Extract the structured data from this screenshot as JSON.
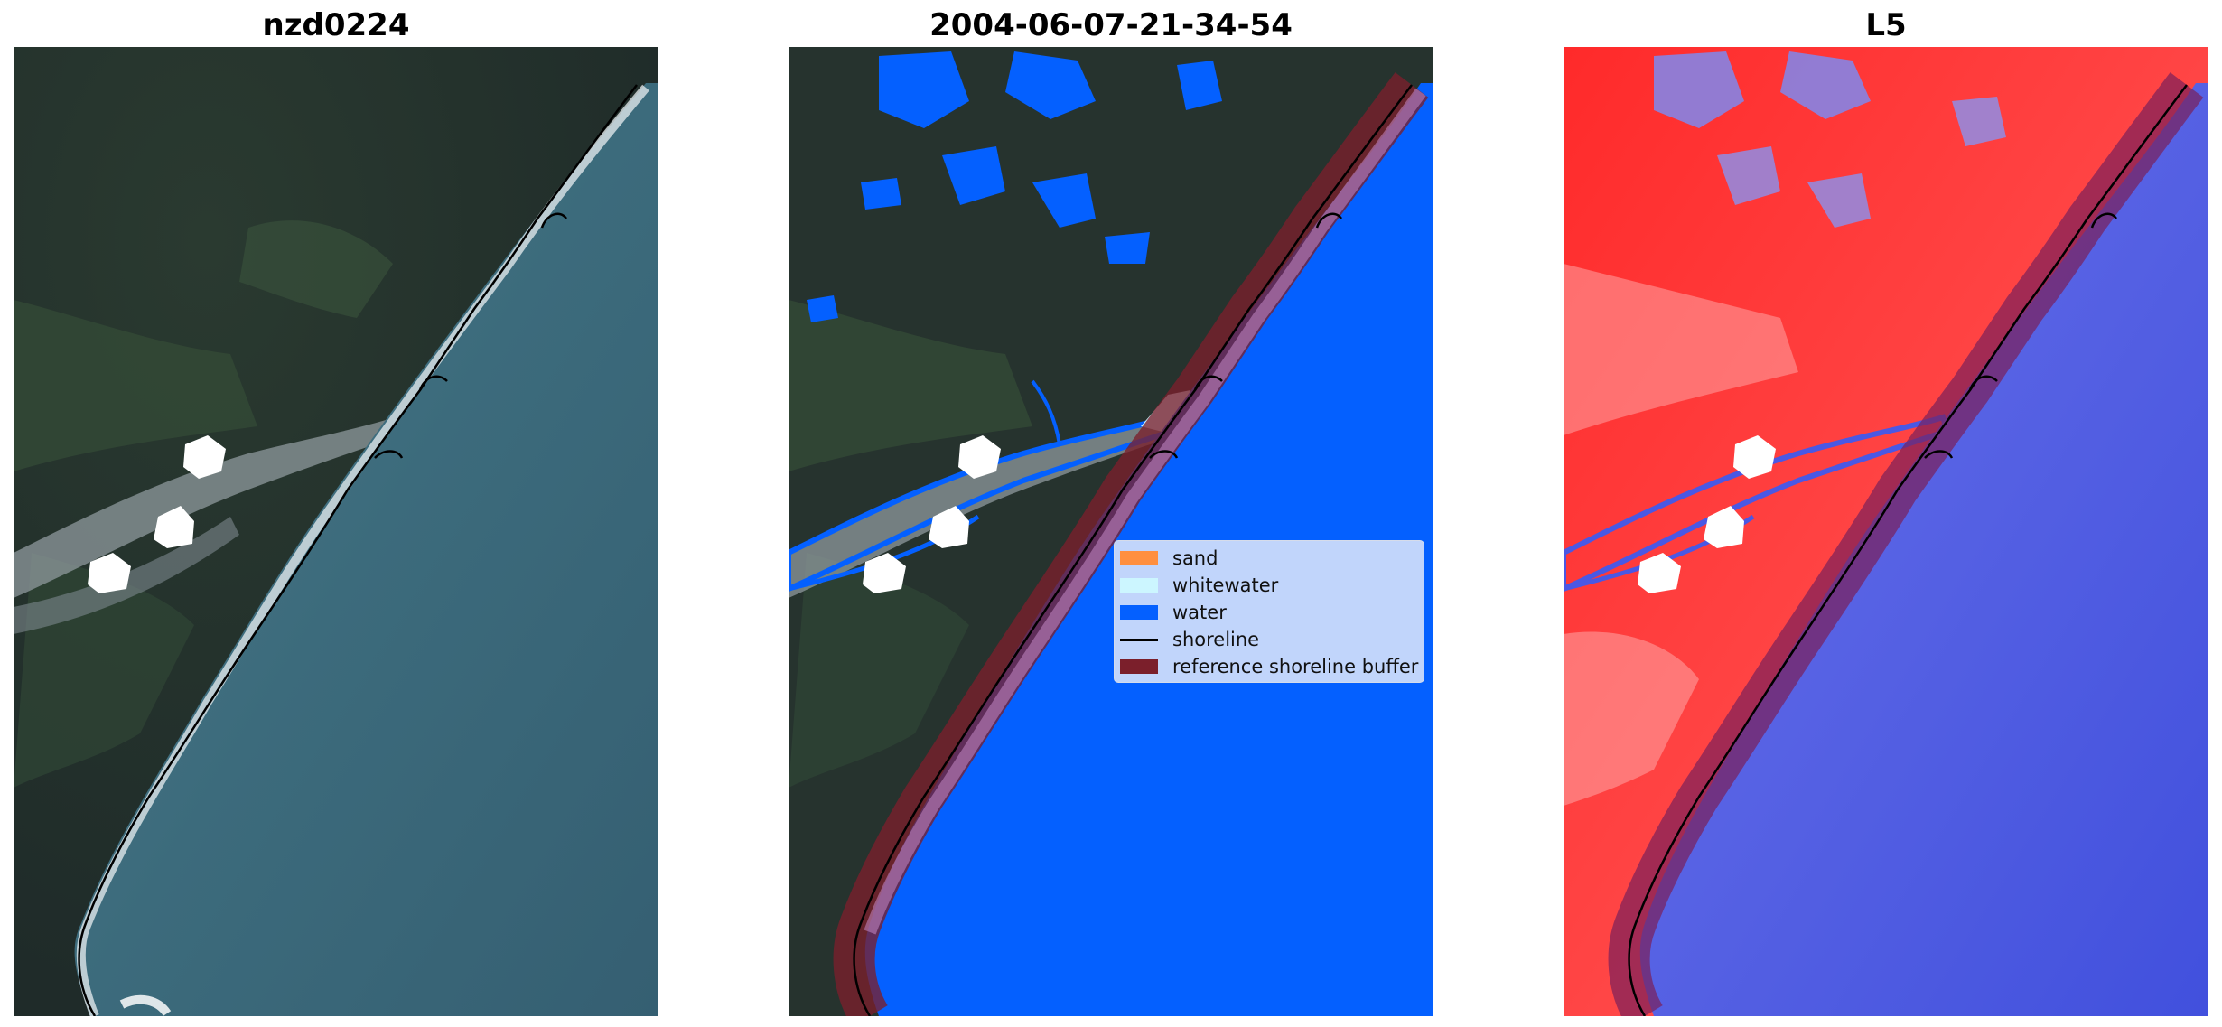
{
  "panels": [
    {
      "title": "nzd0224"
    },
    {
      "title": "2004-06-07-21-34-54"
    },
    {
      "title": "L5"
    }
  ],
  "legend": {
    "items": [
      {
        "label": "sand",
        "color": "#ff8f3f"
      },
      {
        "label": "whitewater",
        "color": "#ccf6ff"
      },
      {
        "label": "water",
        "color": "#0460ff"
      },
      {
        "label": "shoreline",
        "color": "#000000"
      },
      {
        "label": "reference shoreline buffer",
        "color": "#7b1f2b"
      }
    ]
  },
  "colors": {
    "land_dark": "#26332e",
    "ocean": "#3f6b7c",
    "classified_water": "#0460ff",
    "index_land": "#ff1e1e",
    "index_water": "#4050e0"
  }
}
